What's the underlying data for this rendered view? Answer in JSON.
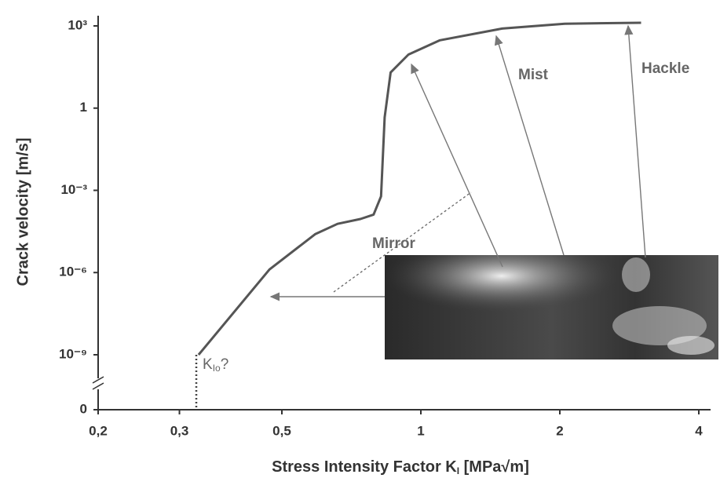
{
  "chart_data": {
    "type": "line",
    "x_label": {
      "text": "Stress Intensity Factor K",
      "sub": "I",
      "suffix": " [MPa√m]"
    },
    "y_label": "Crack velocity [m/s]",
    "log_x": true,
    "log_y": true,
    "y_axis_break": true,
    "color": "#555555",
    "x": [
      0.33,
      0.47,
      0.59,
      0.66,
      0.74,
      0.79,
      0.82,
      0.835,
      0.86,
      0.94,
      1.1,
      1.5,
      2.05,
      3.0
    ],
    "values": [
      1e-09,
      1.3e-06,
      2.5e-05,
      6e-05,
      9e-05,
      0.00013,
      0.0006,
      0.46,
      20,
      90,
      300,
      800,
      1200,
      1300
    ],
    "xlim": [
      0.2,
      4
    ],
    "ylim": [
      1e-09,
      1000
    ],
    "xticks": [
      {
        "value": 0.2,
        "label": "0,2"
      },
      {
        "value": 0.3,
        "label": "0,3"
      },
      {
        "value": 0.5,
        "label": "0,5"
      },
      1,
      2,
      4
    ],
    "yticks": [
      {
        "value": 0,
        "label": "0"
      },
      {
        "value": 1e-09,
        "label": "10⁻⁹"
      },
      {
        "value": 1e-06,
        "label": "10⁻⁶"
      },
      {
        "value": 0.001,
        "label": "10⁻³"
      },
      1,
      {
        "value": 1000,
        "label": "10³"
      }
    ],
    "annotations": {
      "mist": "Mist",
      "hackle": "Hackle",
      "mirror": "Mirror",
      "threshold": {
        "text": "K",
        "sub": "Io",
        "suffix": "?"
      }
    }
  }
}
